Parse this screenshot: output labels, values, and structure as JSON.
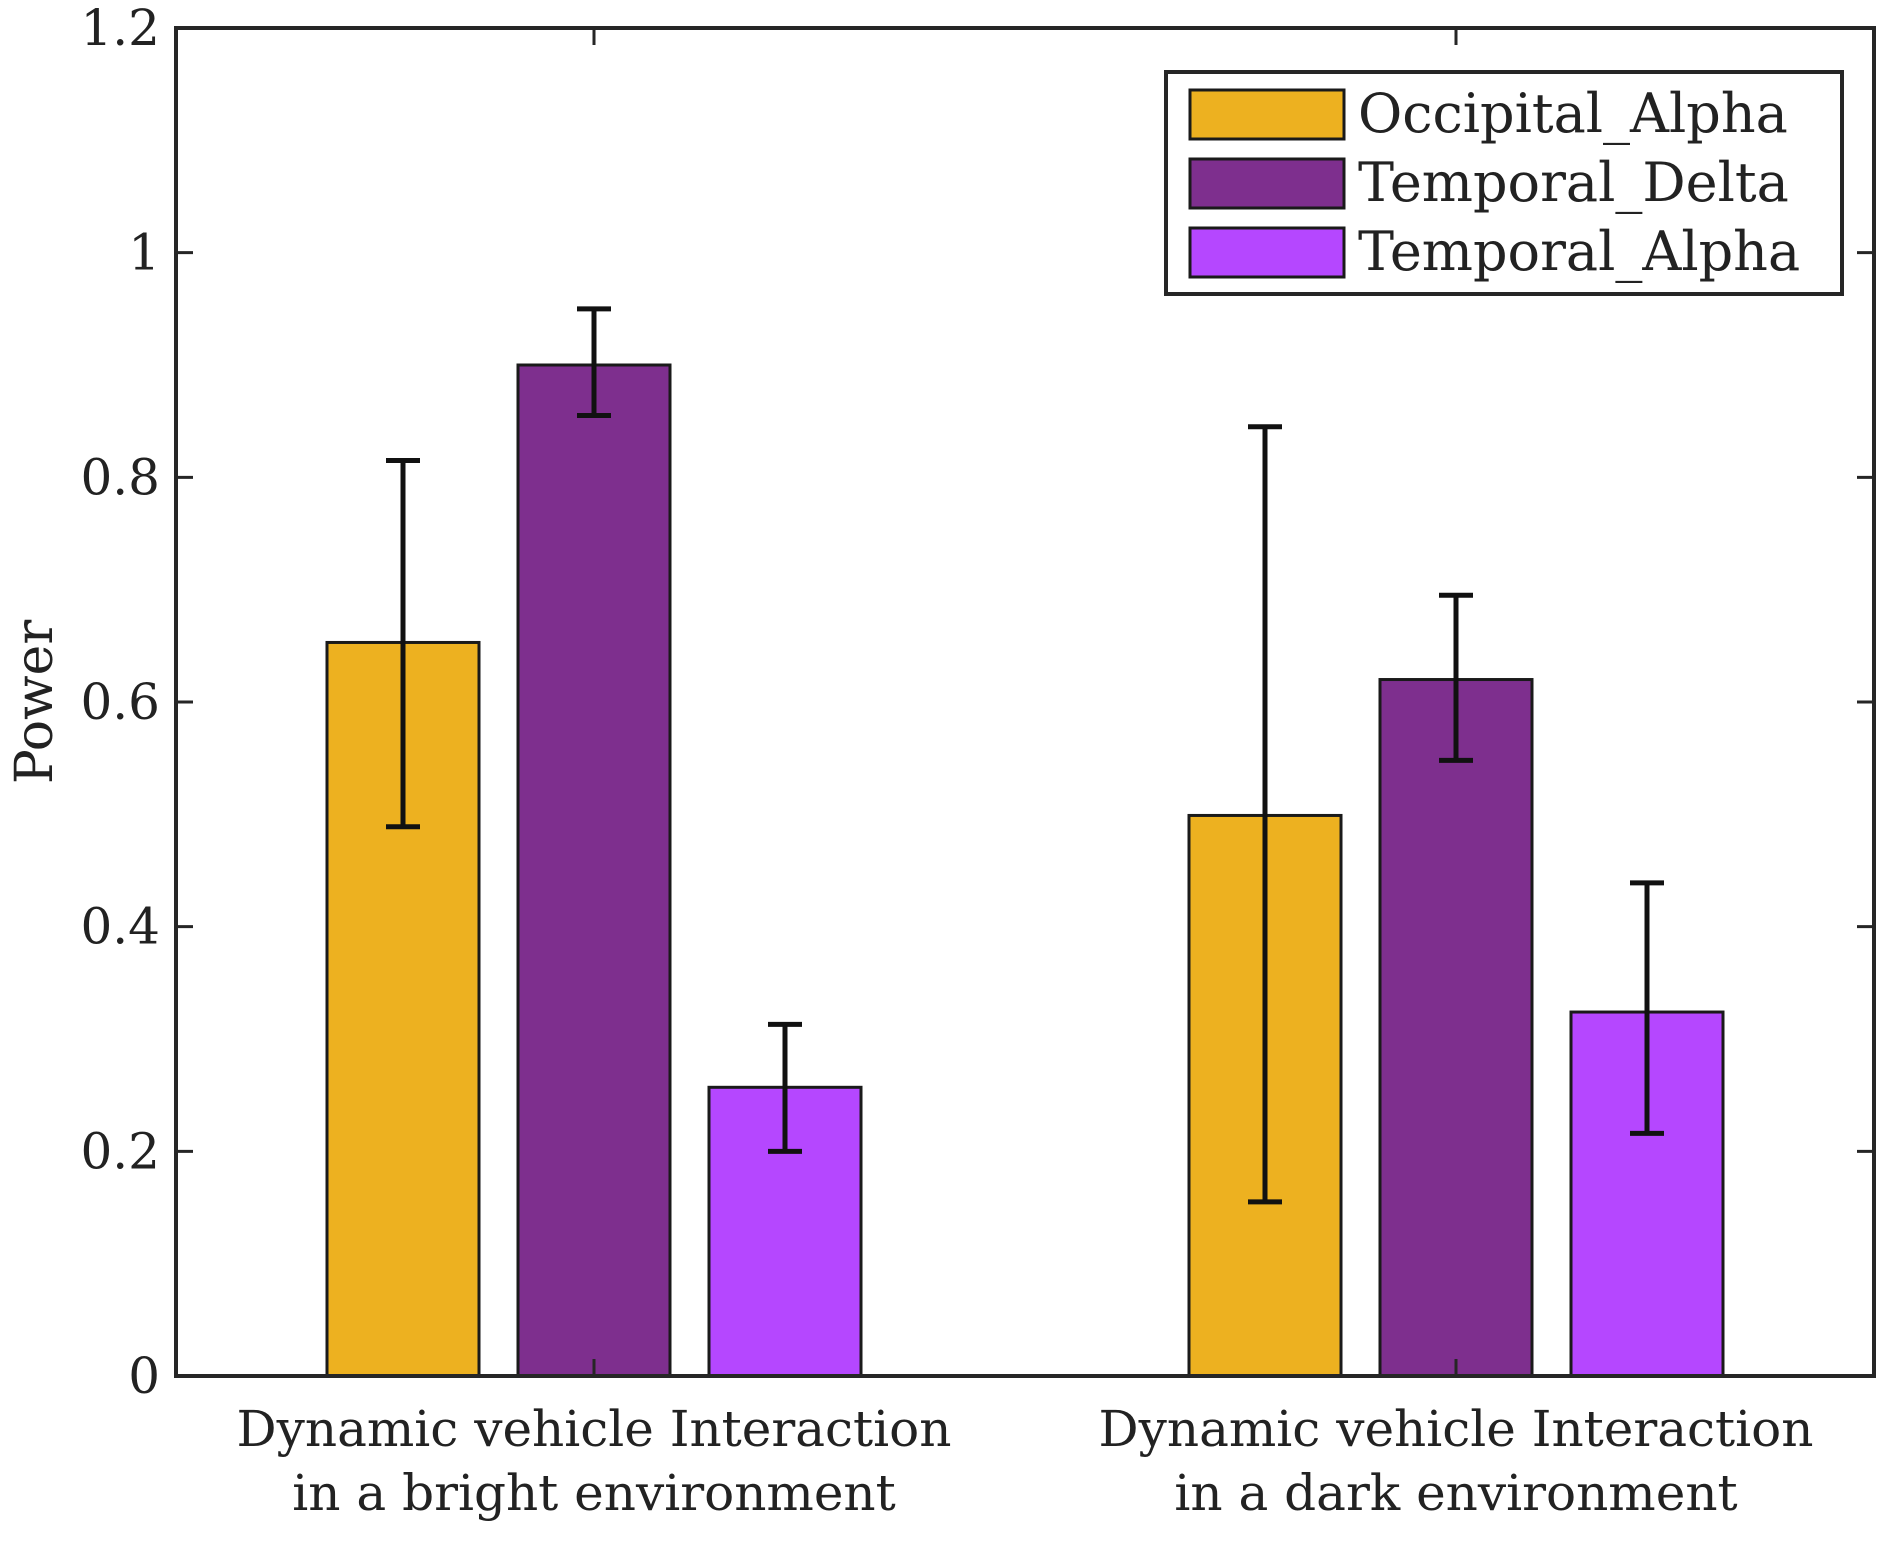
{
  "chart_data": {
    "type": "bar",
    "title": "",
    "xlabel": "",
    "ylabel": "Power",
    "ylim": [
      0,
      1.2
    ],
    "yticks": [
      "0",
      "0.2",
      "0.4",
      "0.6",
      "0.8",
      "1",
      "1.2"
    ],
    "ytick_values": [
      0,
      0.2,
      0.4,
      0.6,
      0.8,
      1.0,
      1.2
    ],
    "categories": [
      [
        "Dynamic vehicle Interaction",
        "in a bright environment"
      ],
      [
        "Dynamic vehicle Interaction",
        "in a dark environment"
      ]
    ],
    "series": [
      {
        "name": "Occipital_Alpha",
        "color": "#EDB120",
        "values": [
          0.653,
          0.499
        ],
        "err_low": [
          0.489,
          0.155
        ],
        "err_high": [
          0.815,
          0.845
        ]
      },
      {
        "name": "Temporal_Delta",
        "color": "#7E2F8E",
        "values": [
          0.9,
          0.62
        ],
        "err_low": [
          0.855,
          0.548
        ],
        "err_high": [
          0.95,
          0.695
        ]
      },
      {
        "name": "Temporal_Alpha",
        "color": "#B547FF",
        "values": [
          0.257,
          0.324
        ],
        "err_low": [
          0.2,
          0.216
        ],
        "err_high": [
          0.313,
          0.439
        ]
      }
    ],
    "legend_position": "top-right",
    "grid": false
  }
}
